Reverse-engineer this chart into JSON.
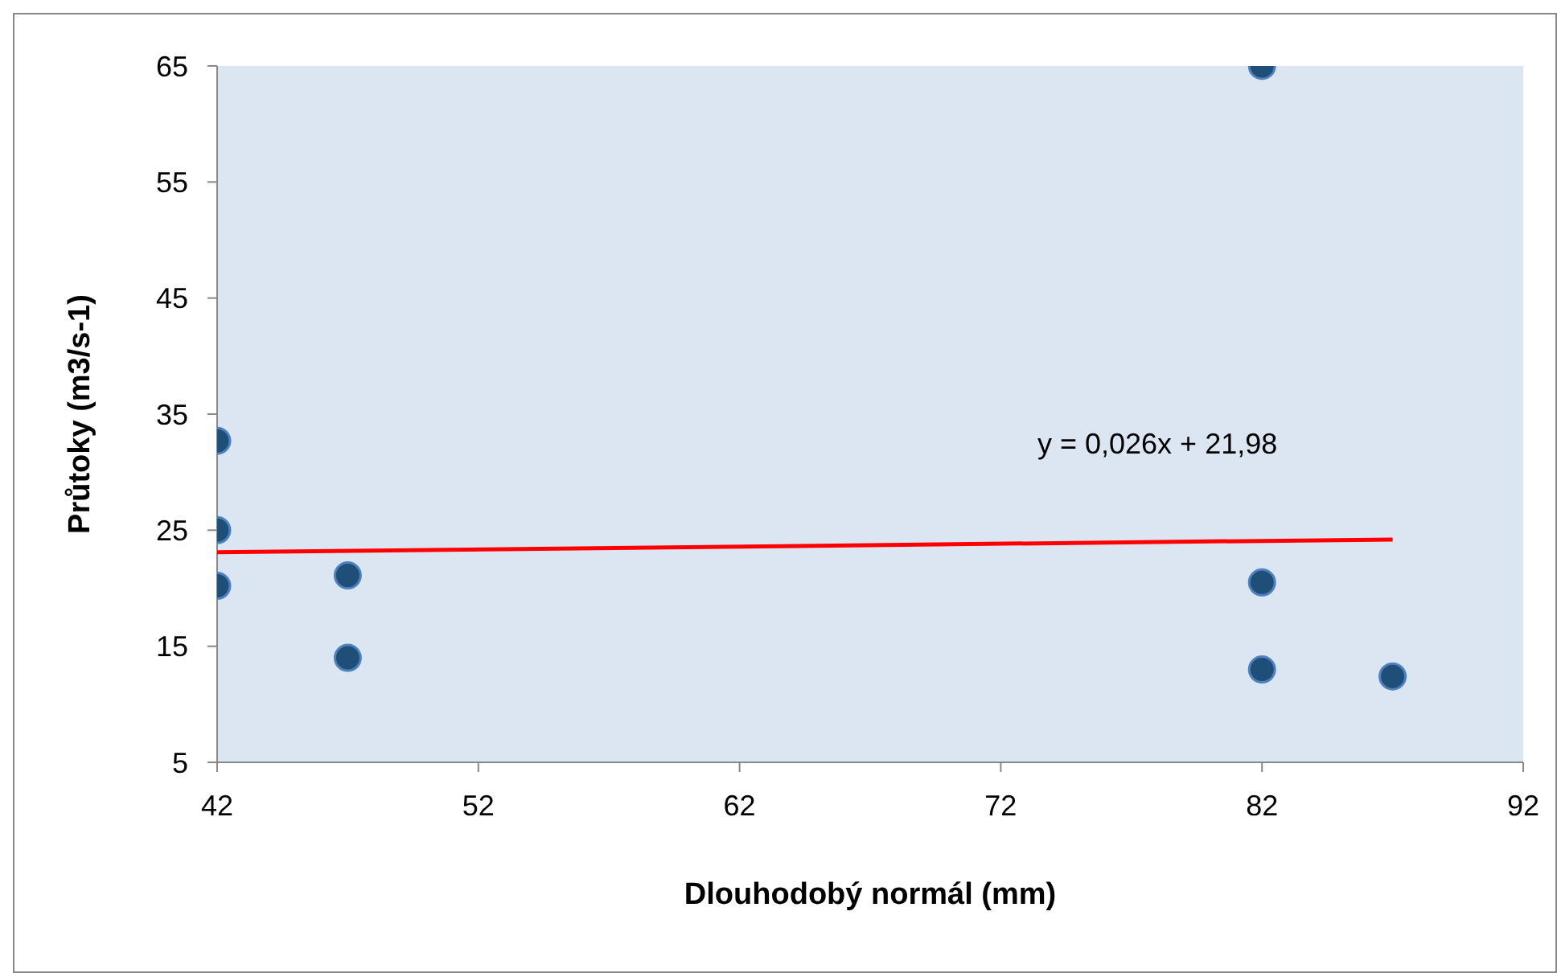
{
  "chart_data": {
    "type": "scatter",
    "xlabel": "Dlouhodobý normál (mm)",
    "ylabel": "Průtoky (m3/s-1)",
    "xlim": [
      42,
      92
    ],
    "xticks": [
      42,
      52,
      62,
      72,
      82,
      92
    ],
    "ylim": [
      5,
      65
    ],
    "yticks": [
      5,
      15,
      25,
      35,
      45,
      55,
      65
    ],
    "marker": "circle",
    "series": [
      {
        "color": "#1f4e79",
        "x": [
          42,
          42,
          42,
          47,
          47,
          82,
          82,
          82,
          87
        ],
        "values": [
          32.7,
          25,
          20.2,
          21.1,
          14,
          65,
          20.5,
          13,
          12.4
        ]
      },
      {
        "type": "line",
        "marker": "none",
        "color": "#ff0000",
        "x": [
          42,
          87
        ],
        "values": [
          23.1,
          24.2
        ]
      }
    ],
    "annotations": [
      "y = 0,026x + 21,98"
    ]
  }
}
